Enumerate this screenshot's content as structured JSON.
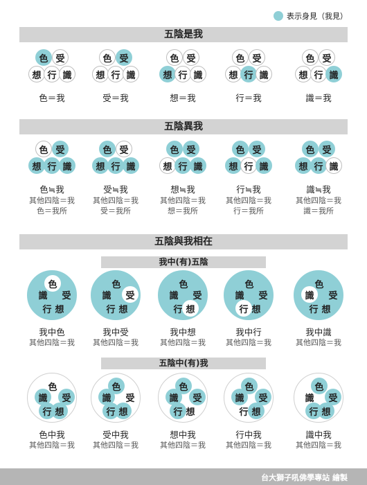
{
  "legend": {
    "label": "表示身見（我見）",
    "color": "#8fcfd6"
  },
  "aggregates": [
    "色",
    "受",
    "想",
    "行",
    "識"
  ],
  "section1": {
    "title": "五陰是我",
    "items": [
      {
        "hl": [
          0
        ],
        "label": "色＝我"
      },
      {
        "hl": [
          1
        ],
        "label": "受＝我"
      },
      {
        "hl": [
          2
        ],
        "label": "想＝我"
      },
      {
        "hl": [
          3
        ],
        "label": "行＝我"
      },
      {
        "hl": [
          4
        ],
        "label": "識＝我"
      }
    ]
  },
  "section2": {
    "title": "五陰異我",
    "items": [
      {
        "hl": [
          1,
          2,
          3,
          4
        ],
        "label": "色≒我",
        "line1": "其他四陰＝我",
        "line2": "色＝我所"
      },
      {
        "hl": [
          0,
          2,
          3,
          4
        ],
        "label": "受≒我",
        "line1": "其他四陰＝我",
        "line2": "受＝我所"
      },
      {
        "hl": [
          0,
          1,
          3,
          4
        ],
        "label": "想≒我",
        "line1": "其他四陰＝我",
        "line2": "想＝我所"
      },
      {
        "hl": [
          0,
          1,
          2,
          4
        ],
        "label": "行≒我",
        "line1": "其他四陰＝我",
        "line2": "行＝我所"
      },
      {
        "hl": [
          0,
          1,
          2,
          3
        ],
        "label": "識≒我",
        "line1": "其他四陰＝我",
        "line2": "識＝我所"
      }
    ]
  },
  "section3": {
    "title": "五陰與我相在",
    "sub1": {
      "title": "我中(有)五陰",
      "items": [
        {
          "inner": 0,
          "label": "我中色",
          "line1": "其他四陰＝我"
        },
        {
          "inner": 1,
          "label": "我中受",
          "line1": "其他四陰＝我"
        },
        {
          "inner": 2,
          "label": "我中想",
          "line1": "其他四陰＝我"
        },
        {
          "inner": 3,
          "label": "我中行",
          "line1": "其他四陰＝我"
        },
        {
          "inner": 4,
          "label": "我中識",
          "line1": "其他四陰＝我"
        }
      ]
    },
    "sub2": {
      "title": "五陰中(有)我",
      "items": [
        {
          "outer": 0,
          "label": "色中我",
          "line1": "其他四陰＝我"
        },
        {
          "outer": 1,
          "label": "受中我",
          "line1": "其他四陰＝我"
        },
        {
          "outer": 2,
          "label": "想中我",
          "line1": "其他四陰＝我"
        },
        {
          "outer": 3,
          "label": "行中我",
          "line1": "其他四陰＝我"
        },
        {
          "outer": 4,
          "label": "識中我",
          "line1": "其他四陰＝我"
        }
      ]
    }
  },
  "footer": {
    "credit": "台大獅子吼佛學專站 繪製"
  }
}
